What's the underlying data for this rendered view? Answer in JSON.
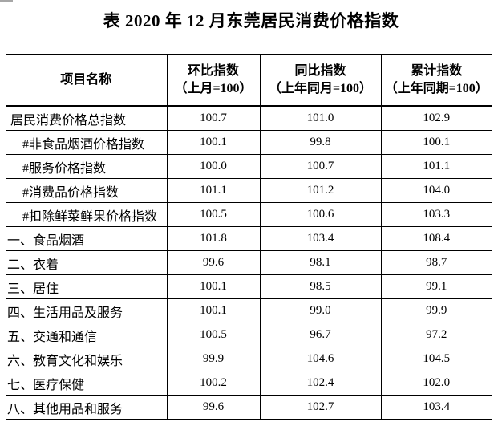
{
  "title": "表 2020 年 12 月东莞居民消费价格指数",
  "colors": {
    "text": "#000000",
    "background": "#ffffff",
    "table_border": "#000000",
    "corner_artifact_gray": "#a6a6a6"
  },
  "table": {
    "headers": {
      "item": "项目名称",
      "mom_line1": "环比指数",
      "mom_line2": "（上月=100）",
      "yoy_line1": "同比指数",
      "yoy_line2": "（上年同月=100）",
      "cum_line1": "累计指数",
      "cum_line2": "（上年同期=100）"
    },
    "rows": [
      {
        "name": "居民消费价格总指数",
        "mom": "100.7",
        "yoy": "101.0",
        "cum": "102.9"
      },
      {
        "name": "#非食品烟酒价格指数",
        "mom": "100.1",
        "yoy": "99.8",
        "cum": "100.1"
      },
      {
        "name": "#服务价格指数",
        "mom": "100.0",
        "yoy": "100.7",
        "cum": "101.1"
      },
      {
        "name": "#消费品价格指数",
        "mom": "101.1",
        "yoy": "101.2",
        "cum": "104.0"
      },
      {
        "name": "#扣除鲜菜鲜果价格指数",
        "mom": "100.5",
        "yoy": "100.6",
        "cum": "103.3"
      },
      {
        "name": "一、食品烟酒",
        "mom": "101.8",
        "yoy": "103.4",
        "cum": "108.4"
      },
      {
        "name": "二、衣着",
        "mom": "99.6",
        "yoy": "98.1",
        "cum": "98.7"
      },
      {
        "name": "三、居住",
        "mom": "100.1",
        "yoy": "98.5",
        "cum": "99.1"
      },
      {
        "name": "四、生活用品及服务",
        "mom": "100.1",
        "yoy": "99.0",
        "cum": "99.9"
      },
      {
        "name": "五、交通和通信",
        "mom": "100.5",
        "yoy": "96.7",
        "cum": "97.2"
      },
      {
        "name": "六、教育文化和娱乐",
        "mom": "99.9",
        "yoy": "104.6",
        "cum": "104.5"
      },
      {
        "name": "七、医疗保健",
        "mom": "100.2",
        "yoy": "102.4",
        "cum": "102.0"
      },
      {
        "name": "八、其他用品和服务",
        "mom": "99.6",
        "yoy": "102.7",
        "cum": "103.4"
      }
    ]
  }
}
